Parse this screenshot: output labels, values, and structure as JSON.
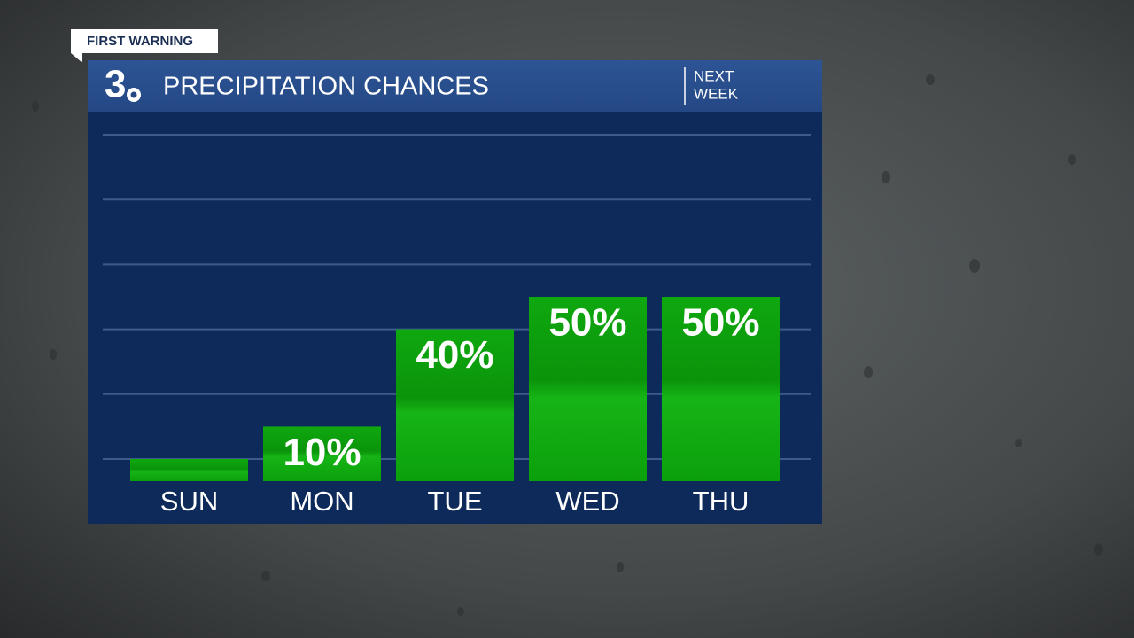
{
  "chart_data": {
    "type": "bar",
    "tag": "FIRST WARNING",
    "logo": "3",
    "title": "PRECIPITATION CHANCES",
    "subtitle_lines": [
      "NEXT",
      "WEEK"
    ],
    "categories": [
      "SUN",
      "MON",
      "TUE",
      "WED",
      "THU"
    ],
    "values": [
      0,
      10,
      40,
      50,
      50
    ],
    "value_labels": [
      null,
      "10%",
      "40%",
      "50%",
      "50%"
    ],
    "color": "#0c9a0c",
    "ylim": [
      0,
      100
    ],
    "yticks": [
      0,
      20,
      40,
      60,
      80,
      100
    ],
    "grid": true
  }
}
